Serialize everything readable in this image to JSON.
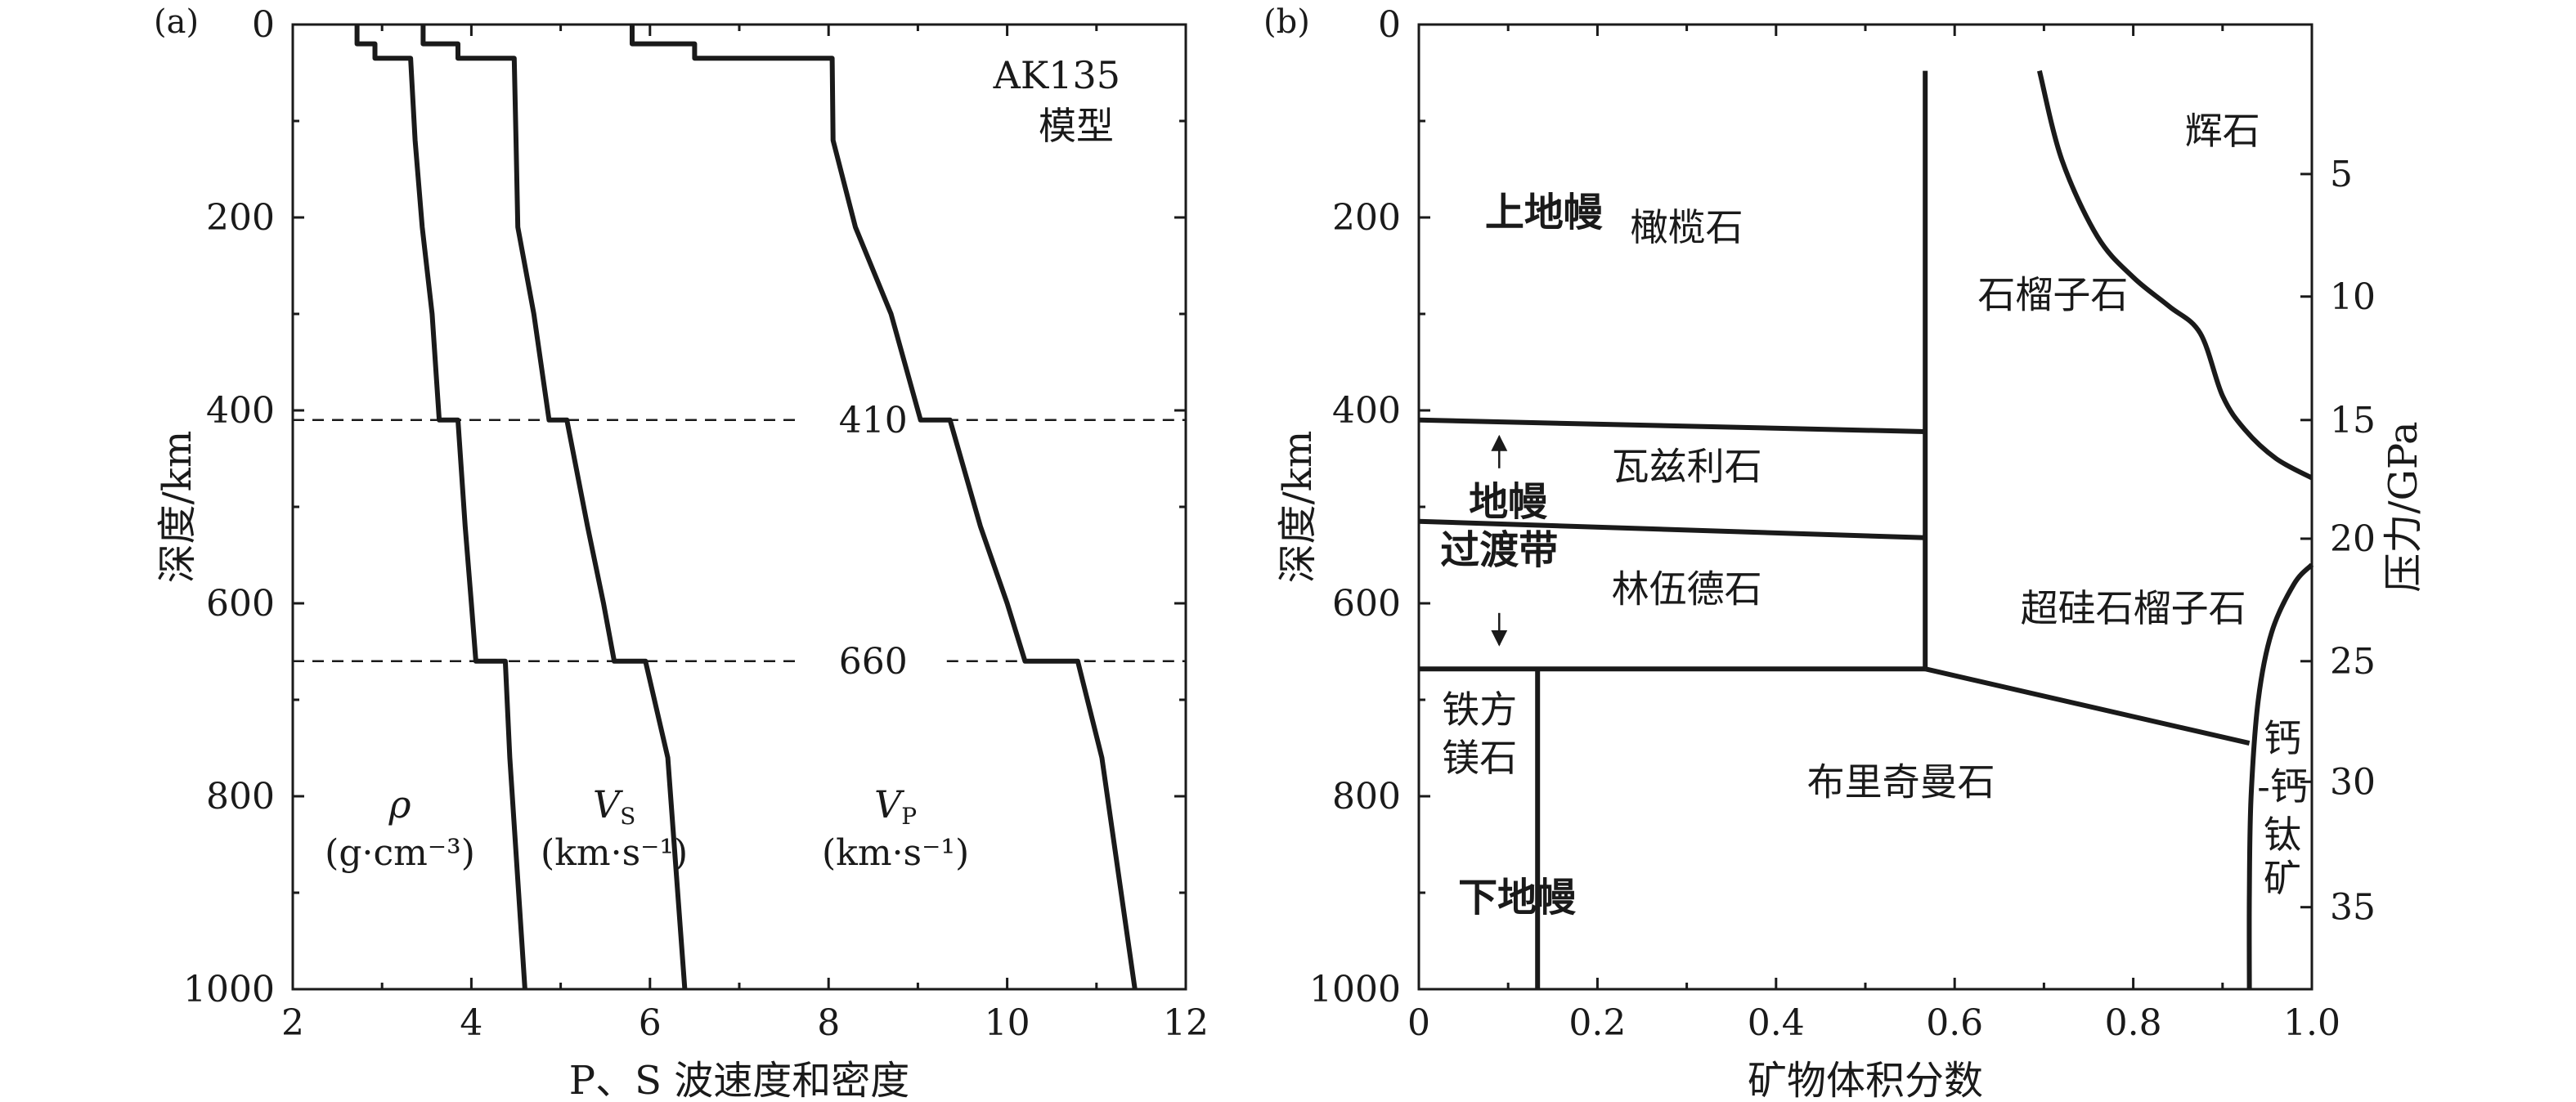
{
  "chart_data": [
    {
      "type": "line",
      "panel_label": "(a)",
      "annotation": [
        "AK135",
        "模型"
      ],
      "xlabel": "P、S 波速度和密度",
      "ylabel": "深度/km",
      "xlim": [
        2,
        12
      ],
      "ylim": [
        0,
        1000
      ],
      "x_ticks": [
        2,
        4,
        6,
        8,
        10,
        12
      ],
      "y_ticks": [
        0,
        200,
        400,
        600,
        800,
        1000
      ],
      "y_inverted": true,
      "discontinuity_labels": [
        {
          "depth": 410,
          "label": "410"
        },
        {
          "depth": 660,
          "label": "660"
        }
      ],
      "series": [
        {
          "name": "ρ",
          "unit": "(g·cm⁻³)",
          "points": [
            [
              2.72,
              0
            ],
            [
              2.72,
              20
            ],
            [
              2.92,
              20
            ],
            [
              2.92,
              35
            ],
            [
              3.32,
              35
            ],
            [
              3.37,
              120
            ],
            [
              3.45,
              210
            ],
            [
              3.56,
              300
            ],
            [
              3.64,
              410
            ],
            [
              3.85,
              410
            ],
            [
              3.93,
              520
            ],
            [
              4.0,
              600
            ],
            [
              4.05,
              660
            ],
            [
              4.38,
              660
            ],
            [
              4.43,
              760
            ],
            [
              4.6,
              1000
            ]
          ]
        },
        {
          "name": "VS",
          "unit": "(km·s⁻¹)",
          "points": [
            [
              3.46,
              0
            ],
            [
              3.46,
              20
            ],
            [
              3.85,
              20
            ],
            [
              3.85,
              35
            ],
            [
              4.48,
              35
            ],
            [
              4.5,
              120
            ],
            [
              4.52,
              210
            ],
            [
              4.7,
              300
            ],
            [
              4.87,
              410
            ],
            [
              5.07,
              410
            ],
            [
              5.3,
              520
            ],
            [
              5.48,
              600
            ],
            [
              5.6,
              660
            ],
            [
              5.95,
              660
            ],
            [
              6.2,
              760
            ],
            [
              6.39,
              1000
            ]
          ]
        },
        {
          "name": "VP",
          "unit": "(km·s⁻¹)",
          "points": [
            [
              5.8,
              0
            ],
            [
              5.8,
              20
            ],
            [
              6.5,
              20
            ],
            [
              6.5,
              35
            ],
            [
              8.04,
              35
            ],
            [
              8.05,
              120
            ],
            [
              8.3,
              210
            ],
            [
              8.7,
              300
            ],
            [
              9.03,
              410
            ],
            [
              9.36,
              410
            ],
            [
              9.7,
              520
            ],
            [
              10.0,
              600
            ],
            [
              10.2,
              660
            ],
            [
              10.79,
              660
            ],
            [
              11.06,
              760
            ],
            [
              11.43,
              1000
            ]
          ]
        }
      ]
    },
    {
      "type": "area",
      "panel_label": "(b)",
      "xlabel": "矿物体积分数",
      "ylabel": "深度/km",
      "ylabel_right": "压力/GPa",
      "xlim": [
        0,
        1.0
      ],
      "ylim": [
        0,
        1000
      ],
      "y_inverted": true,
      "x_ticks": [
        0,
        0.2,
        0.4,
        0.6,
        0.8,
        1.0
      ],
      "x_tick_labels": [
        "0",
        "0.2",
        "0.4",
        "0.6",
        "0.8",
        "1.0"
      ],
      "y_ticks": [
        0,
        200,
        400,
        600,
        800,
        1000
      ],
      "pressure_ticks": [
        {
          "gpa": 5,
          "depth": 155
        },
        {
          "gpa": 10,
          "depth": 282
        },
        {
          "gpa": 15,
          "depth": 410
        },
        {
          "gpa": 20,
          "depth": 533
        },
        {
          "gpa": 25,
          "depth": 660
        },
        {
          "gpa": 30,
          "depth": 785
        },
        {
          "gpa": 35,
          "depth": 915
        }
      ],
      "boundaries": [
        {
          "name": "olivine-garnet",
          "points": [
            [
              0.567,
              48
            ],
            [
              0.567,
              668
            ]
          ]
        },
        {
          "name": "410-transition",
          "points": [
            [
              0,
              410
            ],
            [
              0.567,
              422
            ]
          ]
        },
        {
          "name": "520-transition",
          "points": [
            [
              0,
              515
            ],
            [
              0.567,
              532
            ]
          ]
        },
        {
          "name": "660-transition",
          "points": [
            [
              0,
              668
            ],
            [
              0.567,
              668
            ]
          ]
        },
        {
          "name": "garnet-perovskite",
          "points": [
            [
              0.567,
              668
            ],
            [
              0.93,
              745
            ]
          ]
        },
        {
          "name": "ferropericlase",
          "points": [
            [
              0.133,
              668
            ],
            [
              0.133,
              1000
            ]
          ]
        },
        {
          "name": "pyroxene",
          "points": [
            [
              0.695,
              48
            ],
            [
              0.72,
              140
            ],
            [
              0.76,
              220
            ],
            [
              0.8,
              262
            ],
            [
              0.84,
              292
            ],
            [
              0.875,
              320
            ],
            [
              0.9,
              385
            ],
            [
              0.925,
              420
            ],
            [
              0.96,
              450
            ],
            [
              1.0,
              470
            ]
          ]
        },
        {
          "name": "ca-perovskite",
          "points": [
            [
              1.0,
              560
            ],
            [
              0.98,
              580
            ],
            [
              0.955,
              630
            ],
            [
              0.94,
              700
            ],
            [
              0.932,
              800
            ],
            [
              0.93,
              900
            ],
            [
              0.93,
              1000
            ]
          ]
        }
      ],
      "region_labels": [
        {
          "text": "橄榄石",
          "x": 0.3,
          "y": 210
        },
        {
          "text": "石榴子石",
          "x": 0.71,
          "y": 280
        },
        {
          "text": "辉石",
          "x": 0.9,
          "y": 110
        },
        {
          "text": "瓦兹利石",
          "x": 0.3,
          "y": 458
        },
        {
          "text": "林伍德石",
          "x": 0.3,
          "y": 585
        },
        {
          "text": "超硅石榴子石",
          "x": 0.8,
          "y": 605
        },
        {
          "text": "布里奇曼石",
          "x": 0.54,
          "y": 785
        }
      ],
      "stacked_labels": [
        {
          "lines": [
            "铁方",
            "镁石"
          ],
          "x": 0.068,
          "y": [
            710,
            760
          ]
        },
        {
          "lines": [
            "钙",
            "-钙",
            "钛",
            "矿"
          ],
          "x": 0.967,
          "y": [
            740,
            790,
            840,
            885
          ]
        }
      ],
      "layer_labels": [
        {
          "text": "上地幔",
          "x": 0.14,
          "y": 195
        },
        {
          "text": "地幔",
          "x": 0.1,
          "y": 495
        },
        {
          "text": "过渡带",
          "x": 0.09,
          "y": 545
        },
        {
          "text": "下地幔",
          "x": 0.11,
          "y": 905
        }
      ],
      "transition_zone_arrow": {
        "x": 0.09,
        "from": 410,
        "to": 660
      }
    }
  ]
}
